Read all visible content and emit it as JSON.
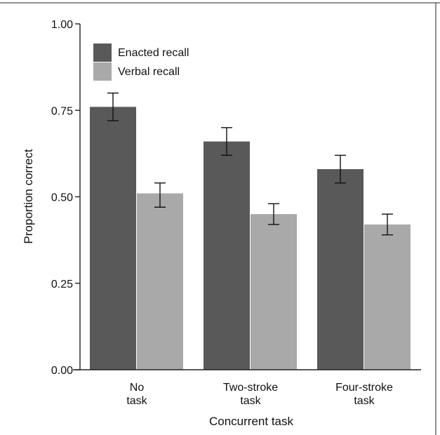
{
  "chart_data": {
    "type": "bar",
    "title": "",
    "xlabel": "Concurrent task",
    "ylabel": "Proportion correct",
    "ylim": [
      0,
      1.0
    ],
    "yticks": [
      0.0,
      0.25,
      0.5,
      0.75,
      1.0
    ],
    "ytick_labels": [
      "0.00",
      "0.25",
      "0.50",
      "0.75",
      "1.00"
    ],
    "grid": false,
    "legend_position": "top-left",
    "categories": [
      [
        "No",
        "task"
      ],
      [
        "Two-stroke",
        "task"
      ],
      [
        "Four-stroke",
        "task"
      ]
    ],
    "series": [
      {
        "name": "Enacted recall",
        "color": "#595959",
        "values": [
          0.76,
          0.66,
          0.58
        ],
        "error_low": [
          0.72,
          0.62,
          0.54
        ],
        "error_high": [
          0.8,
          0.7,
          0.62
        ]
      },
      {
        "name": "Verbal recall",
        "color": "#a9a9a9",
        "values": [
          0.51,
          0.45,
          0.42
        ],
        "error_low": [
          0.47,
          0.42,
          0.39
        ],
        "error_high": [
          0.54,
          0.48,
          0.45
        ]
      }
    ]
  }
}
